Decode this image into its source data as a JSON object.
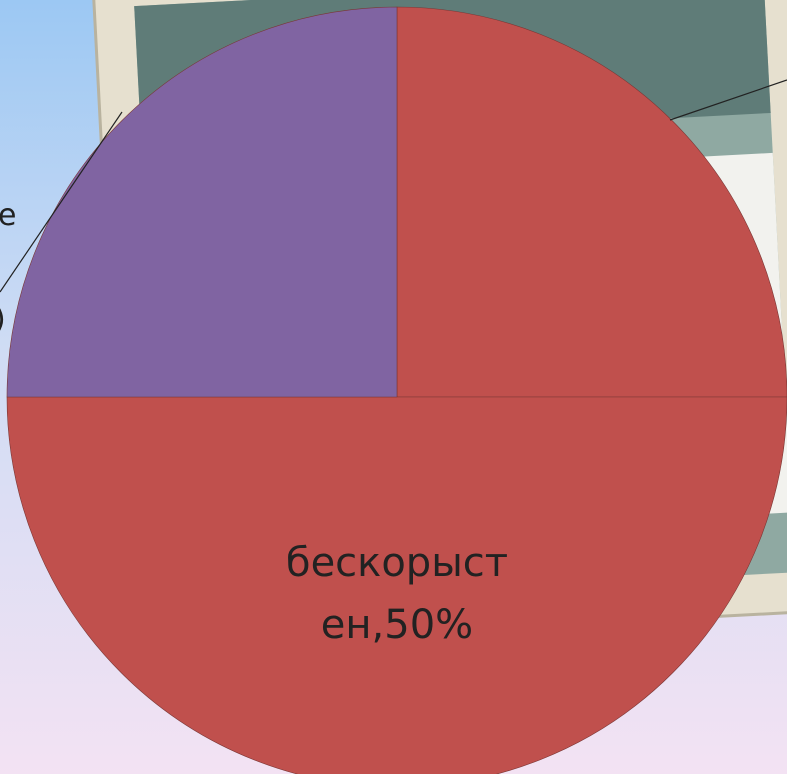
{
  "chart_data": {
    "type": "pie",
    "values": [
      25,
      50,
      25
    ],
    "value_labels": [
      null,
      "бескорыст\nен,50%",
      null
    ],
    "colors": [
      "#c0504d",
      "#c0504d",
      "#8064a2"
    ],
    "annotations": [
      "е",
      ")"
    ]
  }
}
